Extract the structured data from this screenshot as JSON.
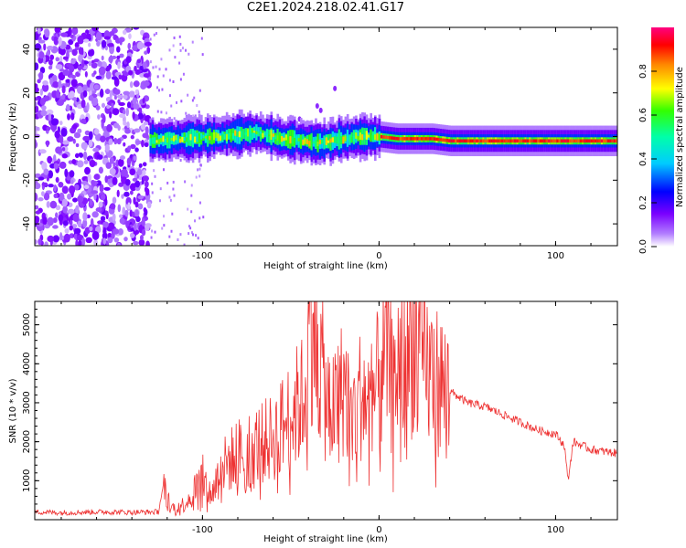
{
  "title": "C2E1.2024.218.02.41.G17",
  "colors": {
    "snr_line": "#ee3333",
    "scatter_noise": "#8a2be2",
    "colormap": [
      "#ffffff",
      "#8800ff",
      "#0000ff",
      "#00ffff",
      "#00ff00",
      "#ffff00",
      "#ff8800",
      "#ff0000",
      "#ff0080"
    ]
  },
  "chart_data": [
    {
      "type": "heatmap",
      "title": "C2E1.2024.218.02.41.G17",
      "xlabel": "Height of straight line (km)",
      "ylabel": "Frequency (Hz)",
      "xlim": [
        -195,
        135
      ],
      "ylim": [
        -50,
        50
      ],
      "xticks": [
        -100,
        0,
        100
      ],
      "yticks": [
        -40,
        -20,
        0,
        20,
        40
      ],
      "colorbar": {
        "label": "Normalized spectral amplitude",
        "range": [
          0,
          1
        ],
        "ticks": [
          "0.0",
          "0.2",
          "0.4",
          "0.6",
          "0.8"
        ]
      },
      "ridge": {
        "x": [
          -130,
          -110,
          -90,
          -70,
          -55,
          -45,
          -35,
          -28,
          -20,
          -10,
          0,
          10,
          20,
          30,
          40,
          60,
          80,
          100,
          120,
          135
        ],
        "frequency": [
          -2,
          -1,
          0,
          2,
          -1,
          -2,
          -3,
          -2,
          -1,
          0,
          0,
          -1,
          -1,
          -1,
          -2,
          -2,
          -2,
          -2,
          -2,
          -2
        ]
      },
      "noise_region_x": [
        -195,
        -130
      ]
    },
    {
      "type": "line",
      "xlabel": "Height of straight line (km)",
      "ylabel": "SNR (10 * v/v)",
      "xlim": [
        -195,
        135
      ],
      "ylim": [
        0,
        5600
      ],
      "xticks": [
        -100,
        0,
        100
      ],
      "yticks": [
        1000,
        2000,
        3000,
        4000,
        5000
      ],
      "series": [
        {
          "x": [
            -195,
            -180,
            -160,
            -140,
            -125,
            -122,
            -118,
            -110,
            -100,
            -95,
            -90,
            -80,
            -70,
            -60,
            -50,
            -42,
            -38,
            -30,
            -25,
            -20,
            -15,
            -10,
            -5,
            0,
            5,
            8,
            10,
            15,
            20,
            25,
            30,
            35,
            40,
            50,
            60,
            70,
            80,
            90,
            100,
            105,
            107,
            110,
            120,
            135
          ],
          "values": [
            200,
            180,
            200,
            190,
            200,
            900,
            300,
            400,
            1100,
            600,
            1300,
            1700,
            1900,
            2100,
            2700,
            3200,
            5400,
            3100,
            2800,
            3500,
            2600,
            3300,
            2900,
            3600,
            4300,
            3200,
            4000,
            3900,
            4800,
            4000,
            3700,
            3500,
            3300,
            3000,
            2900,
            2700,
            2500,
            2300,
            2200,
            1900,
            1000,
            2000,
            1800,
            1700
          ]
        }
      ]
    }
  ]
}
